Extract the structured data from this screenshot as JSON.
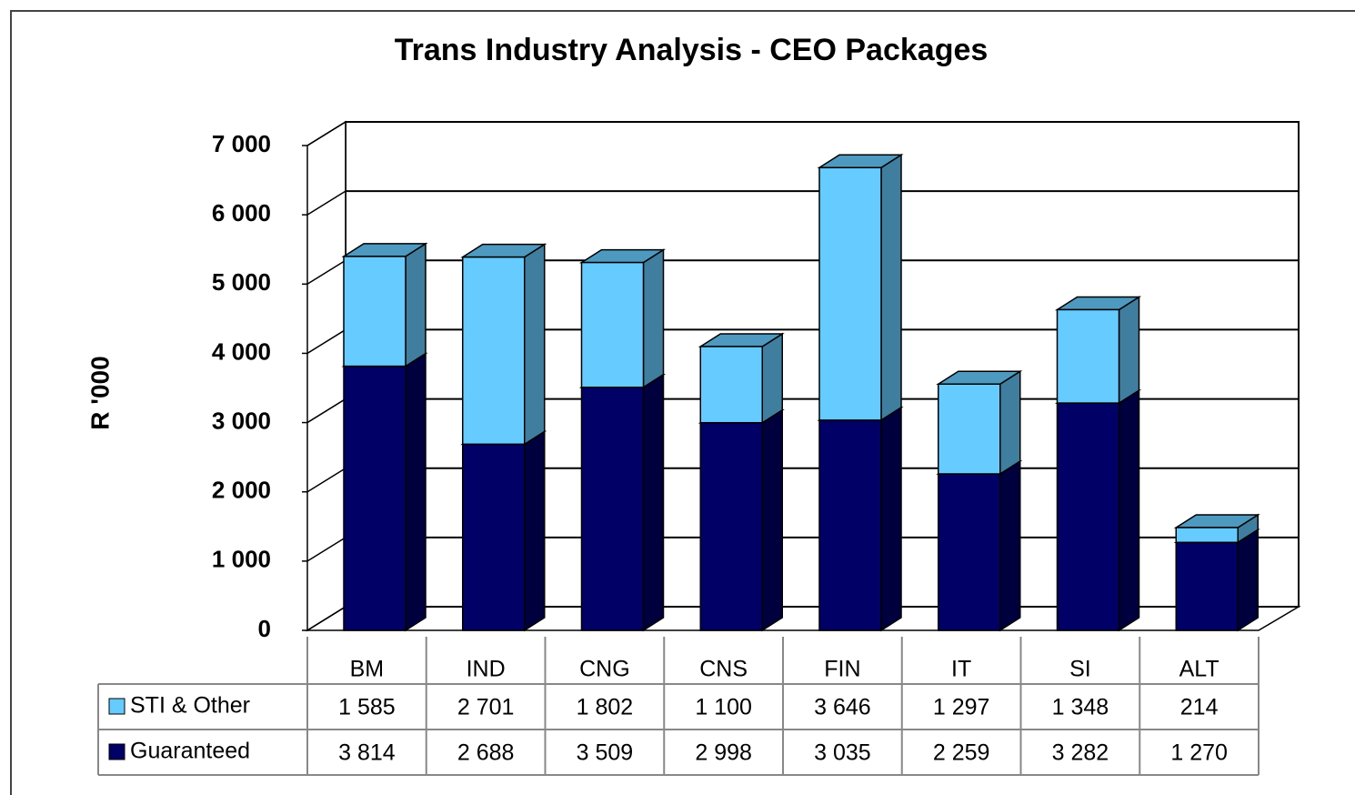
{
  "chart_data": {
    "type": "bar3d_stacked",
    "title": "Trans Industry  Analysis  - CEO Packages",
    "y_label": "R '000",
    "categories": [
      "BM",
      "IND",
      "CNG",
      "CNS",
      "FIN",
      "IT",
      "SI",
      "ALT"
    ],
    "series": [
      {
        "name": "STI & Other",
        "color": "#66ccff",
        "values": [
          1585,
          2701,
          1802,
          1100,
          3646,
          1297,
          1348,
          214
        ],
        "value_labels": [
          "1 585",
          "2 701",
          "1 802",
          "1 100",
          "3 646",
          "1 297",
          "1 348",
          "214"
        ]
      },
      {
        "name": "Guaranteed",
        "color": "#000066",
        "values": [
          3814,
          2688,
          3509,
          2998,
          3035,
          2259,
          3282,
          1270
        ],
        "value_labels": [
          "3 814",
          "2 688",
          "3 509",
          "2 998",
          "3 035",
          "2 259",
          "3 282",
          "1 270"
        ]
      }
    ],
    "ylim": [
      0,
      7000
    ],
    "yticks": [
      0,
      {
        "value": 1000,
        "label": "1 000"
      },
      {
        "value": 2000,
        "label": "2 000"
      },
      {
        "value": 3000,
        "label": "3 000"
      },
      {
        "value": 4000,
        "label": "4 000"
      },
      {
        "value": 5000,
        "label": "5 000"
      },
      {
        "value": 6000,
        "label": "6 000"
      },
      {
        "value": 7000,
        "label": "7 000"
      }
    ],
    "grid": true
  }
}
